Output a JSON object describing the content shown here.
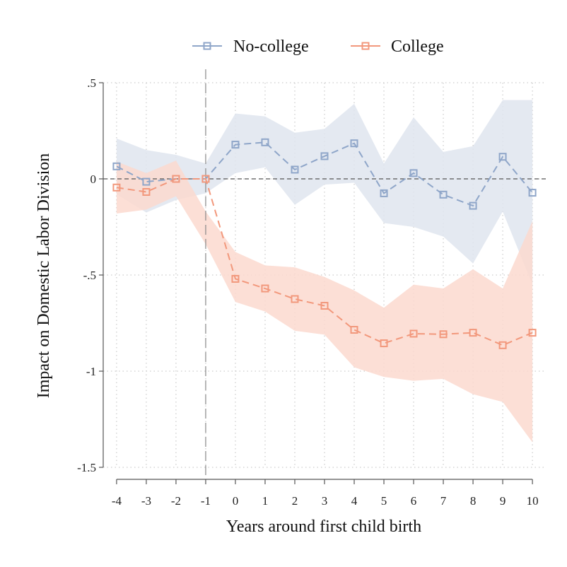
{
  "chart_data": {
    "type": "line",
    "title": "",
    "xlabel": "Years around first child birth",
    "ylabel": "Impact on Domestic Labor Division",
    "x": [
      -4,
      -3,
      -2,
      -1,
      0,
      1,
      2,
      3,
      4,
      5,
      6,
      7,
      8,
      9,
      10
    ],
    "xticks": [
      "-4",
      "-3",
      "-2",
      "-1",
      "0",
      "1",
      "2",
      "3",
      "4",
      "5",
      "6",
      "7",
      "8",
      "9",
      "10"
    ],
    "yticks": [
      {
        "value": 0.5,
        "label": ".5"
      },
      {
        "value": 0,
        "label": "0"
      },
      {
        "value": -0.5,
        "label": "-.5"
      },
      {
        "value": -1,
        "label": "-1"
      },
      {
        "value": -1.5,
        "label": "-1.5"
      }
    ],
    "xlim": [
      -4.45,
      10.45
    ],
    "ylim": [
      -1.5,
      0.5
    ],
    "grid": true,
    "reference_lines": {
      "x": -1,
      "y": 0
    },
    "legend_position": "top",
    "series": [
      {
        "name": "No-college",
        "color": "#8fa6c9",
        "band_color": "#dfe5ef",
        "values": [
          0.065,
          -0.015,
          0.0,
          0.0,
          0.178,
          0.19,
          0.048,
          0.118,
          0.185,
          -0.075,
          0.03,
          -0.082,
          -0.14,
          0.115,
          -0.072
        ],
        "lower": [
          -0.08,
          -0.175,
          -0.11,
          -0.075,
          0.03,
          0.06,
          -0.135,
          -0.03,
          -0.02,
          -0.23,
          -0.25,
          -0.3,
          -0.44,
          -0.17,
          -0.55
        ],
        "upper": [
          0.21,
          0.15,
          0.125,
          0.08,
          0.34,
          0.325,
          0.24,
          0.26,
          0.39,
          0.08,
          0.32,
          0.14,
          0.17,
          0.41,
          0.41
        ]
      },
      {
        "name": "College",
        "color": "#f2987c",
        "band_color": "#fbd9cf",
        "values": [
          -0.045,
          -0.068,
          0.0,
          0.0,
          -0.52,
          -0.57,
          -0.625,
          -0.66,
          -0.785,
          -0.855,
          -0.805,
          -0.808,
          -0.8,
          -0.865,
          -0.8
        ],
        "lower": [
          -0.18,
          -0.16,
          -0.09,
          -0.34,
          -0.64,
          -0.69,
          -0.79,
          -0.81,
          -0.98,
          -1.03,
          -1.05,
          -1.04,
          -1.12,
          -1.16,
          -1.37
        ],
        "upper": [
          0.09,
          0.03,
          0.095,
          -0.17,
          -0.38,
          -0.45,
          -0.46,
          -0.51,
          -0.58,
          -0.67,
          -0.55,
          -0.57,
          -0.47,
          -0.57,
          -0.22
        ]
      }
    ]
  }
}
